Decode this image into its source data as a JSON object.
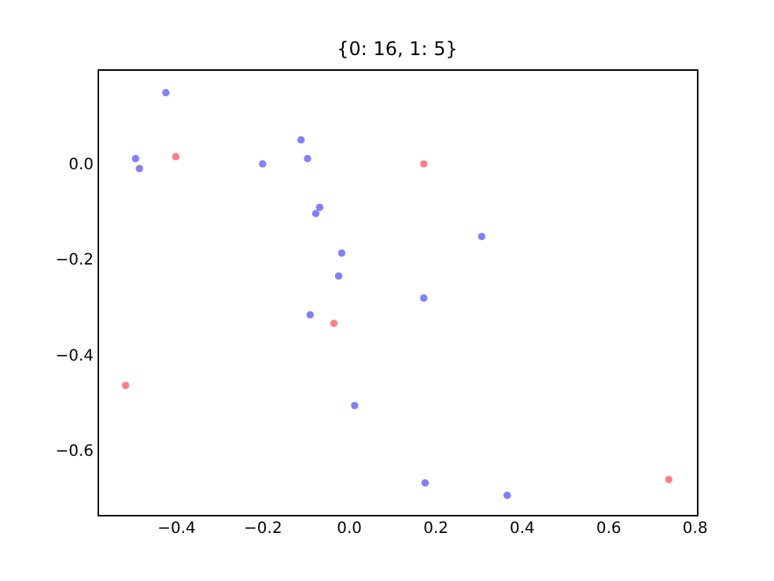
{
  "chart_data": {
    "type": "scatter",
    "title": "{0: 16, 1: 5}",
    "series": [
      {
        "color": "#8080ff",
        "x": [
          -0.423,
          -0.493,
          -0.484,
          -0.199,
          -0.11,
          -0.095,
          -0.067,
          -0.076,
          -0.016,
          -0.023,
          0.174,
          -0.089,
          0.014,
          0.177,
          0.308,
          0.367
        ],
        "values": [
          0.149,
          0.011,
          -0.01,
          0.0,
          0.05,
          0.011,
          -0.091,
          -0.104,
          -0.187,
          -0.235,
          -0.281,
          -0.316,
          -0.506,
          -0.668,
          -0.152,
          -0.694
        ]
      },
      {
        "color": "#ff8080",
        "x": [
          -0.4,
          0.174,
          -0.034,
          -0.516,
          0.741
        ],
        "values": [
          0.015,
          0.0,
          -0.334,
          -0.464,
          -0.661
        ]
      }
    ],
    "xlim": [
      -0.581,
      0.806
    ],
    "ylim": [
      -0.735,
      0.198
    ],
    "xticks": [
      {
        "value": -0.4,
        "label": "−0.4"
      },
      {
        "value": -0.2,
        "label": "−0.2"
      },
      {
        "value": 0.0,
        "label": "0.0"
      },
      {
        "value": 0.2,
        "label": "0.2"
      },
      {
        "value": 0.4,
        "label": "0.4"
      },
      {
        "value": 0.6,
        "label": "0.6"
      },
      {
        "value": 0.8,
        "label": "0.8"
      }
    ],
    "yticks": [
      {
        "value": -0.6,
        "label": "−0.6"
      },
      {
        "value": -0.4,
        "label": "−0.4"
      },
      {
        "value": -0.2,
        "label": "−0.2"
      },
      {
        "value": 0.0,
        "label": "0.0"
      }
    ],
    "grid": false,
    "marker": "circle"
  }
}
